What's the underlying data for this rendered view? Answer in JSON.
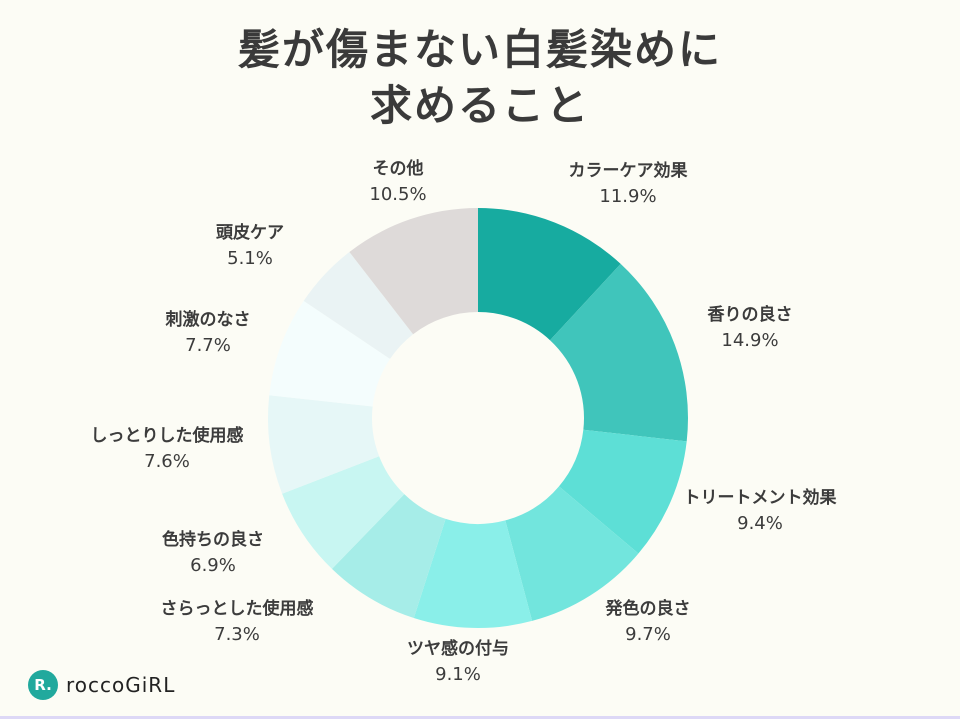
{
  "chart_data": {
    "type": "pie",
    "donut": true,
    "title": "髪が傷まない白髪染めに\n求めること",
    "start": "top, clockwise",
    "categories": [
      "カラーケア効果",
      "香りの良さ",
      "トリートメント効果",
      "発色の良さ",
      "ツヤ感の付与",
      "さらっとした使用感",
      "色持ちの良さ",
      "しっとりした使用感",
      "刺激のなさ",
      "頭皮ケア",
      "その他"
    ],
    "values": [
      11.9,
      14.9,
      9.4,
      9.7,
      9.1,
      7.3,
      6.9,
      7.6,
      7.7,
      5.1,
      10.5
    ],
    "value_labels": [
      "11.9%",
      "14.9%",
      "9.4%",
      "9.7%",
      "9.1%",
      "7.3%",
      "6.9%",
      "7.6%",
      "7.7%",
      "5.1%",
      "10.5%"
    ],
    "colors": [
      "#17aba0",
      "#40c5bb",
      "#5ddfd6",
      "#72e5dd",
      "#8aefe9",
      "#a6ede8",
      "#c8f6f2",
      "#e6f7f7",
      "#f4fdfd",
      "#eaf3f4",
      "#dedad9"
    ]
  },
  "title_lines": [
    "髪が傷まない白髪染めに",
    "求めること"
  ],
  "logo": {
    "text": "roccoGiRL",
    "mark": "R.",
    "color": "#21a99d"
  }
}
